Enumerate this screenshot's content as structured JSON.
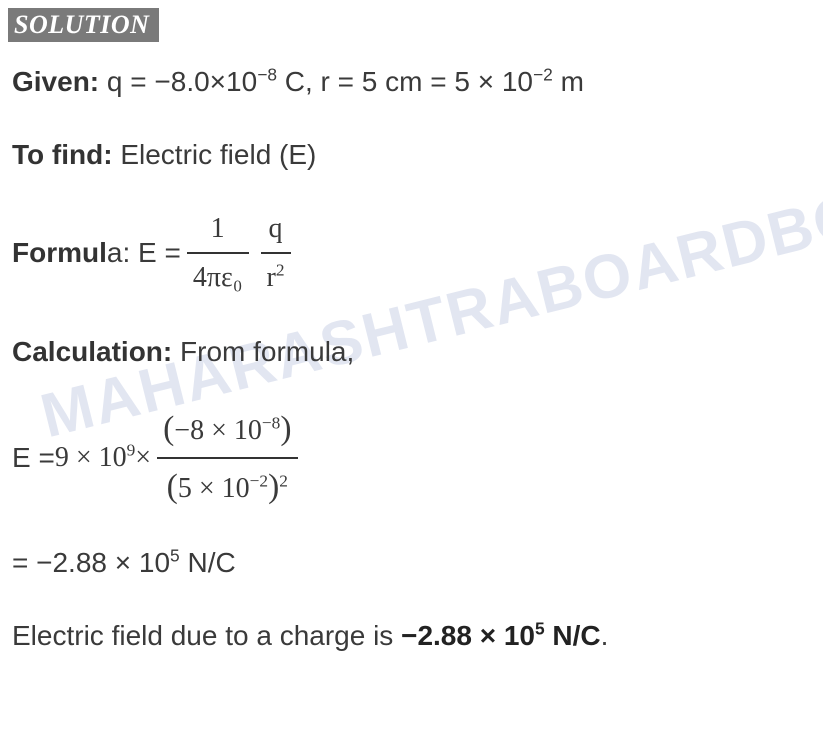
{
  "badge": "SOLUTION",
  "given": {
    "label": "Given:",
    "text_pre": " q = −8.0×10",
    "exp1": "−8",
    "text_mid": " C, r = 5 cm = 5 × 10",
    "exp2": "−2",
    "text_post": " m"
  },
  "tofind": {
    "label": "To find:",
    "text": " Electric field (E)"
  },
  "formula": {
    "label_pre": "Formul",
    "label_post": "a:",
    "lhs": " E = ",
    "frac1_num": "1",
    "frac1_den": "4πε₀",
    "frac2_num": "q",
    "frac2_den_base": "r",
    "frac2_den_exp": "2"
  },
  "calculation": {
    "label": "Calculation:",
    "text": " From formula,"
  },
  "calc_expr": {
    "lhs": "E = ",
    "coef": "9 × 10",
    "coef_exp": "9",
    "times": "  × ",
    "num_open": "(",
    "num_body": "−8 × 10",
    "num_exp": "−8",
    "num_close": ")",
    "den_open": "(",
    "den_body": "5 × 10",
    "den_exp1": "−2",
    "den_close": ")",
    "den_exp2": "2"
  },
  "result_line": {
    "text_pre": "= −2.88 × 10",
    "exp": "5",
    "text_post": " N/C"
  },
  "final": {
    "text_pre": "Electric field due to a charge is ",
    "bold_pre": "−2.88 × 10",
    "bold_exp": "5",
    "bold_post": " N/C",
    "period": "."
  },
  "watermark": "MAHARASHTRABOARDBO"
}
